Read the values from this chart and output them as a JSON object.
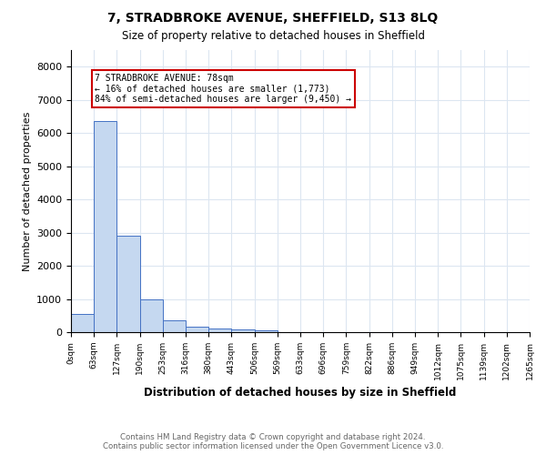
{
  "title": "7, STRADBROKE AVENUE, SHEFFIELD, S13 8LQ",
  "subtitle": "Size of property relative to detached houses in Sheffield",
  "xlabel": "Distribution of detached houses by size in Sheffield",
  "ylabel": "Number of detached properties",
  "bar_values": [
    550,
    6350,
    2900,
    1000,
    370,
    155,
    100,
    70,
    50,
    0,
    0,
    0,
    0,
    0,
    0,
    0,
    0,
    0,
    0,
    0
  ],
  "bar_color": "#c5d8f0",
  "bar_edge_color": "#4472c4",
  "tick_labels": [
    "0sqm",
    "63sqm",
    "127sqm",
    "190sqm",
    "253sqm",
    "316sqm",
    "380sqm",
    "443sqm",
    "506sqm",
    "569sqm",
    "633sqm",
    "696sqm",
    "759sqm",
    "822sqm",
    "886sqm",
    "949sqm",
    "1012sqm",
    "1075sqm",
    "1139sqm",
    "1202sqm",
    "1265sqm"
  ],
  "ylim": [
    0,
    8500
  ],
  "yticks": [
    0,
    1000,
    2000,
    3000,
    4000,
    5000,
    6000,
    7000,
    8000
  ],
  "annotation_title": "7 STRADBROKE AVENUE: 78sqm",
  "annotation_line1": "← 16% of detached houses are smaller (1,773)",
  "annotation_line2": "84% of semi-detached houses are larger (9,450) →",
  "annotation_box_color": "#ffffff",
  "annotation_border_color": "#cc0000",
  "footer_line1": "Contains HM Land Registry data © Crown copyright and database right 2024.",
  "footer_line2": "Contains public sector information licensed under the Open Government Licence v3.0.",
  "background_color": "#ffffff",
  "grid_color": "#dce6f1"
}
